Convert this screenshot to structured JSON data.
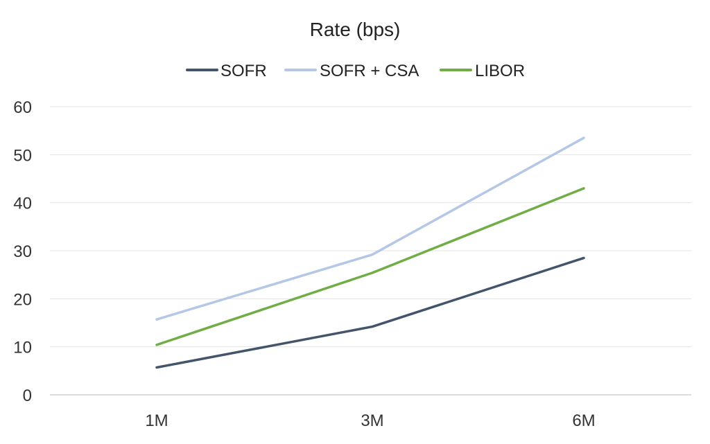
{
  "chart_data": {
    "type": "line",
    "title": "Rate (bps)",
    "categories": [
      "1M",
      "3M",
      "6M"
    ],
    "ylim": [
      0,
      60
    ],
    "yticks": [
      0,
      10,
      20,
      30,
      40,
      50,
      60
    ],
    "grid": true,
    "legend_position": "top",
    "series": [
      {
        "name": "SOFR",
        "color": "#44546a",
        "values": [
          5.7,
          14.2,
          28.5
        ]
      },
      {
        "name": "SOFR + CSA",
        "color": "#b4c7e7",
        "values": [
          15.7,
          29.2,
          53.5
        ]
      },
      {
        "name": "LIBOR",
        "color": "#70ad47",
        "values": [
          10.4,
          25.4,
          43.0
        ]
      }
    ]
  }
}
